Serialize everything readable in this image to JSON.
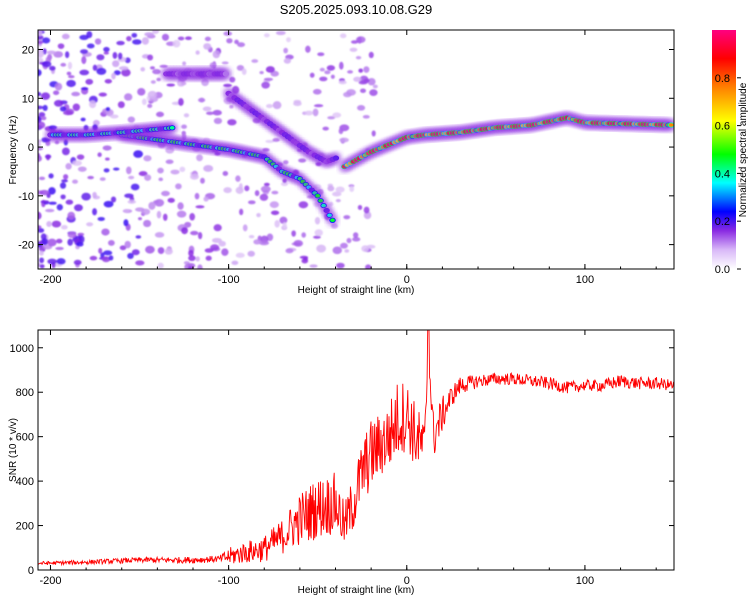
{
  "figure": {
    "title": "S205.2025.093.10.08.G29"
  },
  "chart_data": [
    {
      "type": "heatmap",
      "xlabel": "Height of straight line (km)",
      "ylabel": "Frequency (Hz)",
      "xlim": [
        -207,
        150
      ],
      "ylim": [
        -25,
        24
      ],
      "x_ticks": [
        -200,
        -100,
        0,
        100
      ],
      "y_ticks": [
        -20,
        -10,
        0,
        10,
        20
      ],
      "colorbar": {
        "label": "Normalized spectral amplitude",
        "range": [
          0,
          1
        ],
        "ticks": [
          0.0,
          0.2,
          0.4,
          0.6,
          0.8
        ],
        "colormap": [
          "#ffffff",
          "#8a2be2",
          "#0000ff",
          "#00ffff",
          "#00ff00",
          "#ffff00",
          "#ff8000",
          "#ff0000",
          "#ff0080"
        ]
      },
      "ridges": [
        {
          "points": [
            [
              -160,
              2.5
            ],
            [
              -130,
              1
            ],
            [
              -100,
              -0.5
            ],
            [
              -80,
              -2
            ],
            [
              -70,
              -5
            ],
            [
              -60,
              -6.5
            ],
            [
              -50,
              -10
            ],
            [
              -45,
              -13
            ],
            [
              -40,
              -16
            ]
          ],
          "peak_amplitude": 0.5
        },
        {
          "points": [
            [
              -200,
              2.5
            ],
            [
              -180,
              2.5
            ],
            [
              -160,
              3
            ],
            [
              -145,
              3.5
            ],
            [
              -130,
              4
            ]
          ],
          "peak_amplitude": 0.45
        },
        {
          "points": [
            [
              -35,
              -4
            ],
            [
              -20,
              -1
            ],
            [
              -10,
              0.5
            ],
            [
              0,
              2
            ],
            [
              10,
              2.5
            ],
            [
              30,
              3
            ],
            [
              50,
              4
            ],
            [
              70,
              4.5
            ],
            [
              90,
              6
            ],
            [
              100,
              5
            ],
            [
              120,
              4.8
            ],
            [
              150,
              4.5
            ]
          ],
          "peak_amplitude": 0.95
        },
        {
          "points": [
            [
              -100,
              11
            ],
            [
              -85,
              7
            ],
            [
              -70,
              3
            ],
            [
              -55,
              -1
            ],
            [
              -45,
              -3
            ],
            [
              -38,
              -2
            ]
          ],
          "peak_amplitude": 0.3
        },
        {
          "points": [
            [
              -135,
              15
            ],
            [
              -120,
              15
            ],
            [
              -100,
              15
            ]
          ],
          "peak_amplitude": 0.25
        }
      ]
    },
    {
      "type": "line",
      "xlabel": "Height of straight line (km)",
      "ylabel": "SNR (10 * v/v)",
      "xlim": [
        -207,
        150
      ],
      "ylim": [
        0,
        1080
      ],
      "x_ticks": [
        -200,
        -100,
        0,
        100
      ],
      "y_ticks": [
        0,
        200,
        400,
        600,
        800,
        1000
      ],
      "series": [
        {
          "color": "#ff0000",
          "x": [
            -207,
            -180,
            -150,
            -120,
            -105,
            -100,
            -90,
            -80,
            -70,
            -60,
            -50,
            -40,
            -35,
            -30,
            -25,
            -20,
            -15,
            -10,
            -5,
            0,
            5,
            10,
            12,
            15,
            20,
            25,
            30,
            40,
            50,
            60,
            70,
            80,
            90,
            100,
            110,
            120,
            130,
            140,
            150
          ],
          "y": [
            30,
            35,
            45,
            45,
            50,
            60,
            80,
            95,
            150,
            230,
            280,
            300,
            200,
            300,
            440,
            520,
            560,
            600,
            680,
            700,
            600,
            550,
            1000,
            600,
            700,
            780,
            830,
            850,
            860,
            860,
            850,
            840,
            820,
            830,
            830,
            850,
            840,
            840,
            830
          ],
          "noise": [
            8,
            10,
            12,
            15,
            15,
            40,
            50,
            60,
            80,
            120,
            140,
            140,
            100,
            130,
            150,
            160,
            150,
            160,
            180,
            160,
            150,
            120,
            0,
            110,
            80,
            50,
            40,
            30,
            28,
            28,
            28,
            28,
            28,
            25,
            28,
            30,
            28,
            28,
            25
          ]
        }
      ]
    }
  ]
}
